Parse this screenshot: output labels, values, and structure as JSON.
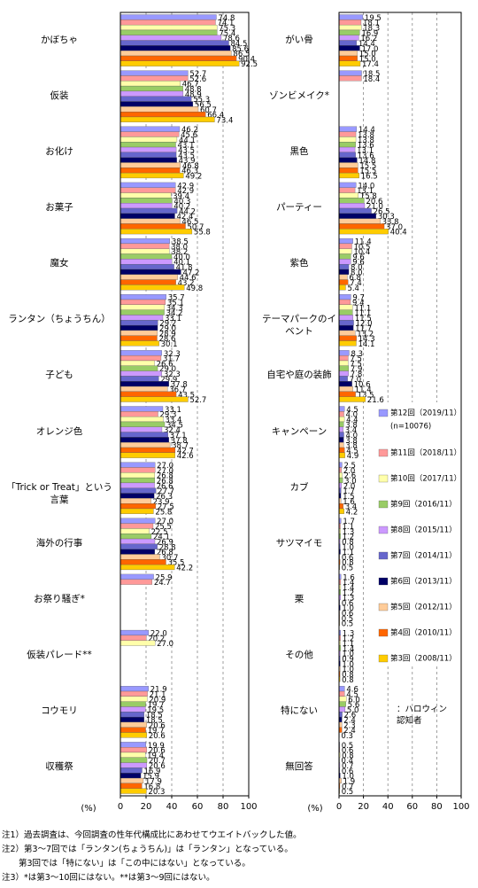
{
  "chart_data": [
    {
      "type": "bar",
      "orientation": "horizontal",
      "xlabel": "(%)",
      "xlim": [
        0,
        100
      ],
      "xticks": [
        0,
        20,
        40,
        60,
        80,
        100
      ],
      "grid": true,
      "categories": [
        "かぼちゃ",
        "仮装",
        "お化け",
        "お菓子",
        "魔女",
        "ランタン（ちょうちん）",
        "子ども",
        "オレンジ色",
        "「Trick or Treat」という言葉",
        "海外の行事",
        "お祭り騒ぎ*",
        "仮装パレード**",
        "コウモリ",
        "収穫祭"
      ],
      "series": [
        {
          "color": "#9999ff",
          "values": [
            74.8,
            52.7,
            46.2,
            42.9,
            38.5,
            35.7,
            32.3,
            33.1,
            27.0,
            27.0,
            25.9,
            22.0,
            21.9,
            19.9
          ],
          "value_labels": [
            "74.8",
            "52.7",
            "46.2",
            "42.9",
            "38.5",
            "35.7",
            "32.3",
            "33.1",
            "27.0",
            "27.0",
            "25.9",
            "22.0",
            "21.9",
            "19.9"
          ]
        },
        {
          "color": "#ff9999",
          "values": [
            74.1,
            52.6,
            45.6,
            42.9,
            38.0,
            35.1,
            31.7,
            29.3,
            27.0,
            25.5,
            24.7,
            20.2,
            21.1,
            20.6
          ],
          "value_labels": [
            "74.1",
            "52.6",
            "45.6",
            "42.9",
            "38.0",
            "35.1",
            "31.7",
            "29.3",
            "27.0",
            "25.5",
            "24.7",
            "20.2",
            "21.1",
            "20.6"
          ]
        },
        {
          "color": "#ffffaa",
          "values": [
            75.3,
            46.7,
            44.1,
            39.4,
            38.2,
            34.3,
            26.6,
            33.4,
            26.8,
            22.5,
            null,
            27.0,
            20.9,
            19.4
          ],
          "value_labels": [
            "75.3",
            "46.7",
            "44.1",
            "39.4",
            "38.2",
            "34.3",
            "26.6",
            "33.4",
            "26.8",
            "22.5",
            null,
            "27.0",
            "20.9",
            "19.4"
          ]
        },
        {
          "color": "#99cc66",
          "values": [
            75.4,
            48.8,
            43.1,
            40.3,
            40.0,
            34.2,
            29.0,
            34.5,
            26.8,
            24.1,
            null,
            null,
            19.7,
            20.7
          ],
          "value_labels": [
            "75.4",
            "48.8",
            "43.1",
            "40.3",
            "40.0",
            "34.2",
            "29.0",
            "34.5",
            "26.8",
            "24.1",
            null,
            null,
            "19.7",
            "20.7"
          ]
        },
        {
          "color": "#cc99ff",
          "values": [
            78.6,
            48.9,
            43.5,
            40.2,
            40.1,
            33.1,
            32.3,
            32.4,
            26.6,
            26.9,
            null,
            null,
            19.5,
            20.6
          ],
          "value_labels": [
            "78.6",
            "48.9",
            "43.5",
            "40.2",
            "40.1",
            "33.1",
            "32.3",
            "32.4",
            "26.6",
            "26.9",
            null,
            null,
            "19.5",
            "20.6"
          ]
        },
        {
          "color": "#6666cc",
          "values": [
            84.5,
            55.3,
            43.5,
            44.2,
            41.8,
            29.2,
            29.9,
            37.1,
            27.7,
            28.8,
            null,
            null,
            18.5,
            16.9
          ],
          "value_labels": [
            "84.5",
            "55.3",
            "43.5",
            "44.2",
            "41.8",
            "29.2",
            "29.9",
            "37.1",
            "27.7",
            "28.8",
            null,
            null,
            "18.5",
            "16.9"
          ]
        },
        {
          "color": "#000066",
          "values": [
            85.6,
            56.5,
            43.9,
            42.4,
            47.2,
            29.0,
            37.8,
            37.8,
            26.3,
            26.8,
            null,
            null,
            18.5,
            15.9
          ],
          "value_labels": [
            "85.6",
            "56.5",
            "43.9",
            "42.4",
            "47.2",
            "29.0",
            "37.8",
            "37.8",
            "26.3",
            "26.8",
            null,
            null,
            "18.5",
            "15.9"
          ]
        },
        {
          "color": "#ffcc99",
          "values": [
            86.5,
            60.7,
            46.8,
            46.5,
            44.6,
            28.9,
            36.7,
            38.7,
            23.9,
            30.7,
            null,
            null,
            20.6,
            17.9
          ],
          "value_labels": [
            "86.5",
            "60.7",
            "46.8",
            "46.5",
            "44.6",
            "28.9",
            "36.7",
            "38.7",
            "23.9",
            "30.7",
            null,
            null,
            "20.6",
            "17.9"
          ]
        },
        {
          "color": "#ff6600",
          "values": [
            90.4,
            66.4,
            46.3,
            50.7,
            43.2,
            28.6,
            43.5,
            42.7,
            27.5,
            35.5,
            null,
            null,
            19.7,
            16.8
          ],
          "value_labels": [
            "90.4",
            "66.4",
            "46.3",
            "50.7",
            "43.2",
            "28.6",
            "43.5",
            "42.7",
            "27.5",
            "35.5",
            null,
            null,
            "19.7",
            "16.8"
          ]
        },
        {
          "color": "#ffcc00",
          "values": [
            92.5,
            73.4,
            49.2,
            55.8,
            49.8,
            30.1,
            52.7,
            42.6,
            25.8,
            42.2,
            null,
            null,
            20.6,
            20.3
          ],
          "value_labels": [
            "92.5",
            "73.4",
            "49.2",
            "55.8",
            "49.8",
            "30.1",
            "52.7",
            "42.6",
            "25.8",
            "42.2",
            null,
            null,
            "20.6",
            "20.3"
          ]
        }
      ]
    },
    {
      "type": "bar",
      "orientation": "horizontal",
      "xlabel": "(%)",
      "xlim": [
        0,
        100
      ],
      "xticks": [
        0,
        20,
        40,
        60,
        80,
        100
      ],
      "grid": true,
      "legend": "inside-right",
      "legend_note": "(n=10076)",
      "annotation": "：ハロウィン\n認知者",
      "categories": [
        "がい骨",
        "ゾンビメイク*",
        "黒色",
        "パーティー",
        "紫色",
        "テーマパークのイベント",
        "自宅や庭の装飾",
        "キャンペーン",
        "カブ",
        "サツマイモ",
        "栗",
        "その他",
        "特にない",
        "無回答"
      ],
      "series": [
        {
          "name": "第12回（2019/11）",
          "color": "#9999ff",
          "values": [
            19.5,
            18.5,
            14.4,
            14.0,
            11.4,
            9.7,
            8.3,
            4.5,
            2.5,
            1.7,
            1.6,
            1.3,
            4.6,
            0.5
          ],
          "value_labels": [
            "19.5",
            "18.5",
            "14.4",
            "14.0",
            "11.4",
            "9.7",
            "8.3",
            "4.5",
            "2.5",
            "1.7",
            "1.6",
            "1.3",
            "4.6",
            "0.5"
          ]
        },
        {
          "name": "第11回（2018/11）",
          "color": "#ff9999",
          "values": [
            18.1,
            18.4,
            13.8,
            13.1,
            10.5,
            9.4,
            7.5,
            4.0,
            2.0,
            1.1,
            1.4,
            1.2,
            4.5,
            0.6
          ],
          "value_labels": [
            "18.1",
            "18.4",
            "13.8",
            "13.1",
            "10.5",
            "9.4",
            "7.5",
            "4.0",
            "2.0",
            "1.1",
            "1.4",
            "1.2",
            "4.5",
            "0.6"
          ]
        },
        {
          "name": "第10回（2017/11）",
          "color": "#ffffaa",
          "values": [
            18.3,
            null,
            13.8,
            15.8,
            10.4,
            11.1,
            7.5,
            4.4,
            2.6,
            1.3,
            1.4,
            1.1,
            6.0,
            0.8
          ],
          "value_labels": [
            "18.3",
            null,
            "13.8",
            "15.8",
            "10.4",
            "11.1",
            "7.5",
            "4.4",
            "2.6",
            "1.3",
            "1.4",
            "1.1",
            "6.0",
            "0.8"
          ]
        },
        {
          "name": "第9回（2016/11）",
          "color": "#99cc66",
          "values": [
            16.9,
            null,
            13.6,
            20.6,
            9.6,
            11.1,
            7.9,
            3.8,
            3.0,
            1.2,
            1.2,
            1.4,
            5.6,
            0.4
          ],
          "value_labels": [
            "16.9",
            null,
            "13.6",
            "20.6",
            "9.6",
            "11.1",
            "7.9",
            "3.8",
            "3.0",
            "1.2",
            "1.2",
            "1.4",
            "5.6",
            "0.4"
          ]
        },
        {
          "name": "第8回（2015/11）",
          "color": "#cc99ff",
          "values": [
            16.2,
            null,
            13.1,
            21.0,
            9.6,
            11.5,
            7.8,
            3.4,
            2.0,
            0.8,
            1.3,
            1.0,
            5.0,
            0.7
          ],
          "value_labels": [
            "16.2",
            null,
            "13.1",
            "21.0",
            "9.6",
            "11.5",
            "7.8",
            "3.4",
            "2.0",
            "0.8",
            "1.3",
            "1.0",
            "5.0",
            "0.7"
          ]
        },
        {
          "name": "第7回（2014/11）",
          "color": "#6666cc",
          "values": [
            14.4,
            null,
            13.6,
            26.5,
            8.0,
            12.0,
            7.0,
            4.0,
            1.7,
            1.0,
            0.6,
            0.9,
            2.6,
            0.6
          ],
          "value_labels": [
            "14.4",
            null,
            "13.6",
            "26.5",
            "8.0",
            "12.0",
            "7.0",
            "4.0",
            "1.7",
            "1.0",
            "0.6",
            "0.9",
            "2.6",
            "0.6"
          ]
        },
        {
          "name": "第6回（2013/11）",
          "color": "#000066",
          "values": [
            17.0,
            null,
            14.8,
            30.3,
            8.0,
            11.7,
            10.6,
            3.8,
            1.5,
            1.1,
            1.0,
            1.0,
            2.4,
            1.0
          ],
          "value_labels": [
            "17.0",
            null,
            "14.8",
            "30.3",
            "8.0",
            "11.7",
            "10.6",
            "3.8",
            "1.5",
            "1.1",
            "1.0",
            "1.0",
            "2.4",
            "1.0"
          ]
        },
        {
          "name": "第5回（2012/11）",
          "color": "#ffcc99",
          "values": [
            15.0,
            null,
            15.5,
            33.8,
            6.8,
            13.2,
            11.4,
            3.8,
            1.6,
            0.6,
            0.6,
            1.0,
            2.3,
            1.9
          ],
          "value_labels": [
            "15.0",
            null,
            "15.5",
            "33.8",
            "6.8",
            "13.2",
            "11.4",
            "3.8",
            "1.6",
            "0.6",
            "0.6",
            "1.0",
            "2.3",
            "1.9"
          ]
        },
        {
          "name": "第4回（2010/11）",
          "color": "#ff6600",
          "values": [
            15.0,
            null,
            15.5,
            37.0,
            7.4,
            14.3,
            13.5,
            4.5,
            3.4,
            0.8,
            0.5,
            0.8,
            2.4,
            0.7
          ],
          "value_labels": [
            "15.0",
            null,
            "15.5",
            "37.0",
            "7.4",
            "14.3",
            "13.5",
            "4.5",
            "3.4",
            "0.8",
            "0.5",
            "0.8",
            "2.4",
            "0.7"
          ]
        },
        {
          "name": "第3回（2008/11）",
          "color": "#ffcc00",
          "values": [
            17.4,
            null,
            16.5,
            40.4,
            5.4,
            14.1,
            21.6,
            4.9,
            4.2,
            0.5,
            0.5,
            0.8,
            0.3,
            0.5
          ],
          "value_labels": [
            "17.4",
            null,
            "16.5",
            "40.4",
            "5.4",
            "14.1",
            "21.6",
            "4.9",
            "4.2",
            "0.5",
            "0.5",
            "0.8",
            "0.3",
            "0.5"
          ]
        }
      ]
    }
  ],
  "notes": [
    "注1）過去調査は、今回調査の性年代構成比にあわせてウエイトバックした値。",
    "注2）第3～7回では「ランタン(ちょうちん)」は「ランタン」となっている。",
    "　　第3回では「特にない」は「この中にはない」となっている。",
    "注3）*は第3～10回にはない。**は第3～9回にはない。"
  ]
}
